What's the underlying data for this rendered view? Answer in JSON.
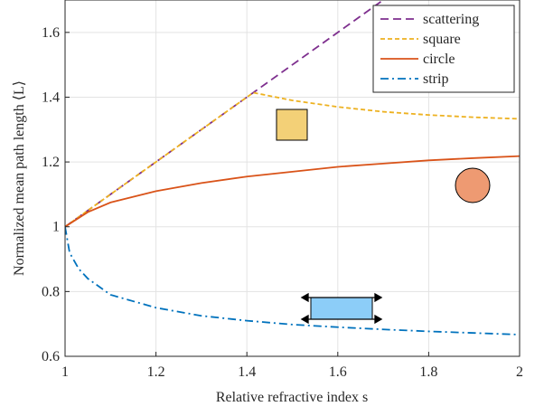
{
  "chart_data": {
    "type": "line",
    "xlabel": "Relative refractive index s",
    "ylabel": "Normalized mean path length ⟨L⟩",
    "xlim": [
      1,
      2
    ],
    "ylim": [
      0.6,
      1.7
    ],
    "xticks": [
      1,
      1.2,
      1.4,
      1.6,
      1.8,
      2
    ],
    "yticks": [
      0.6,
      0.8,
      1,
      1.2,
      1.4,
      1.6
    ],
    "grid": true,
    "legend": "top-right",
    "series": [
      {
        "name": "scattering",
        "color": "#7e2f8e",
        "linestyle": "dashed",
        "x": [
          1,
          1.7
        ],
        "values": [
          1,
          1.7
        ]
      },
      {
        "name": "square",
        "color": "#edb120",
        "linestyle": "dotted",
        "x": [
          1,
          1.414,
          1.5,
          1.6,
          1.7,
          1.8,
          1.9,
          2
        ],
        "values": [
          1,
          1.414,
          1.39,
          1.37,
          1.355,
          1.345,
          1.338,
          1.333
        ]
      },
      {
        "name": "circle",
        "color": "#d95319",
        "linestyle": "solid",
        "x": [
          1,
          1.05,
          1.1,
          1.2,
          1.3,
          1.4,
          1.5,
          1.6,
          1.7,
          1.8,
          1.9,
          2
        ],
        "values": [
          1,
          1.045,
          1.075,
          1.11,
          1.135,
          1.155,
          1.17,
          1.185,
          1.195,
          1.205,
          1.212,
          1.218
        ]
      },
      {
        "name": "strip",
        "color": "#0072bd",
        "linestyle": "dashdot",
        "x": [
          1,
          1.01,
          1.03,
          1.05,
          1.1,
          1.2,
          1.3,
          1.4,
          1.5,
          1.6,
          1.7,
          1.8,
          1.9,
          2
        ],
        "values": [
          1,
          0.92,
          0.87,
          0.84,
          0.79,
          0.75,
          0.725,
          0.71,
          0.698,
          0.69,
          0.683,
          0.677,
          0.672,
          0.667
        ]
      }
    ]
  }
}
